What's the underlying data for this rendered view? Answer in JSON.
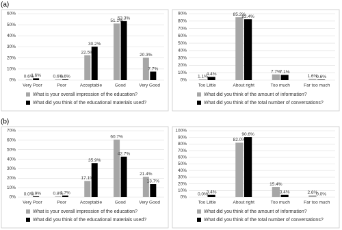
{
  "panels": [
    "(a)",
    "(b)"
  ],
  "chart_data": [
    {
      "type": "bar",
      "categories": [
        "Very Poor",
        "Poor",
        "Acceptable",
        "Good",
        "Very Good"
      ],
      "series": [
        {
          "name": "What is your overall impression of the education?",
          "color": "#a6a6a6",
          "values": [
            0.6,
            0.6,
            22.5,
            51.1,
            20.3
          ],
          "value_labels": [
            "0.6%",
            "0.6%",
            "22.5%",
            "51.1%",
            "20.3%"
          ]
        },
        {
          "name": "What did you think of the educational materials used?",
          "color": "#000000",
          "values": [
            1.6,
            0.6,
            30.2,
            53.3,
            7.7
          ],
          "value_labels": [
            "1.6%",
            "0.6%",
            "30.2%",
            "53.3%",
            "7.7%"
          ]
        }
      ],
      "ylim": [
        0,
        60
      ],
      "yticks": [
        {
          "value": 0,
          "label": "0%"
        },
        {
          "value": 10,
          "label": "10%"
        },
        {
          "value": 20,
          "label": "20%"
        },
        {
          "value": 30,
          "label": "30%"
        },
        {
          "value": 40,
          "label": "40%"
        },
        {
          "value": 50,
          "label": "50%"
        },
        {
          "value": 60,
          "label": "60%"
        }
      ],
      "grid": true,
      "legend": "bottom"
    },
    {
      "type": "bar",
      "categories": [
        "Too Little",
        "About right",
        "Too much",
        "Far too much"
      ],
      "series": [
        {
          "name": "What did you think of the amount of information?",
          "color": "#a6a6a6",
          "values": [
            1.1,
            85.2,
            7.7,
            1.6
          ],
          "value_labels": [
            "1.1%",
            "85.2%",
            "7.7%",
            "1.6%"
          ]
        },
        {
          "name": "What did you think of the total number of conversations?",
          "color": "#000000",
          "values": [
            4.4,
            82.4,
            7.1,
            0.6
          ],
          "value_labels": [
            "4.4%",
            "82.4%",
            "7.1%",
            "0.6%"
          ]
        }
      ],
      "ylim": [
        0,
        90
      ],
      "yticks": [
        {
          "value": 0,
          "label": "0%"
        },
        {
          "value": 10,
          "label": "10%"
        },
        {
          "value": 20,
          "label": "20%"
        },
        {
          "value": 30,
          "label": "30%"
        },
        {
          "value": 40,
          "label": "40%"
        },
        {
          "value": 50,
          "label": "50%"
        },
        {
          "value": 60,
          "label": "60%"
        },
        {
          "value": 70,
          "label": "70%"
        },
        {
          "value": 80,
          "label": "80%"
        },
        {
          "value": 90,
          "label": "90%"
        }
      ],
      "grid": true,
      "legend": "bottom"
    },
    {
      "type": "bar",
      "categories": [
        "Very Poor",
        "Poor",
        "Acceptable",
        "Good",
        "Very Good"
      ],
      "series": [
        {
          "name": "What is your overall impression of the education?",
          "color": "#a6a6a6",
          "values": [
            0.0,
            0.8,
            17.1,
            60.7,
            21.4
          ],
          "value_labels": [
            "0.0%",
            "0.8%",
            "17.1%",
            "60.7%",
            "21.4%"
          ]
        },
        {
          "name": "What did you think of the educational materials used?",
          "color": "#000000",
          "values": [
            0.9,
            1.7,
            35.9,
            42.7,
            13.7
          ],
          "value_labels": [
            "0.9%",
            "1.7%",
            "35.9%",
            "42.7%",
            "13.7%"
          ]
        }
      ],
      "ylim": [
        0,
        70
      ],
      "yticks": [
        {
          "value": 0,
          "label": "0%"
        },
        {
          "value": 10,
          "label": "10%"
        },
        {
          "value": 20,
          "label": "20%"
        },
        {
          "value": 30,
          "label": "30%"
        },
        {
          "value": 40,
          "label": "40%"
        },
        {
          "value": 50,
          "label": "50%"
        },
        {
          "value": 60,
          "label": "60%"
        },
        {
          "value": 70,
          "label": "70%"
        }
      ],
      "grid": true,
      "legend": "bottom"
    },
    {
      "type": "bar",
      "categories": [
        "Too Little",
        "About right",
        "Too much",
        "Far too much"
      ],
      "series": [
        {
          "name": "What did you think of the amount of information?",
          "color": "#a6a6a6",
          "values": [
            0.0,
            82.0,
            15.4,
            2.6
          ],
          "value_labels": [
            "0.0%",
            "82.0%",
            "15.4%",
            "2.6%"
          ]
        },
        {
          "name": "What did you think of the total number of conversations?",
          "color": "#000000",
          "values": [
            3.4,
            90.6,
            3.4,
            0.0
          ],
          "value_labels": [
            "3.4%",
            "90.6%",
            "3.4%",
            "0.0%"
          ]
        }
      ],
      "ylim": [
        0,
        100
      ],
      "yticks": [
        {
          "value": 0,
          "label": "0%"
        },
        {
          "value": 10,
          "label": "10%"
        },
        {
          "value": 20,
          "label": "20%"
        },
        {
          "value": 30,
          "label": "30%"
        },
        {
          "value": 40,
          "label": "40%"
        },
        {
          "value": 50,
          "label": "50%"
        },
        {
          "value": 60,
          "label": "60%"
        },
        {
          "value": 70,
          "label": "70%"
        },
        {
          "value": 80,
          "label": "80%"
        },
        {
          "value": 90,
          "label": "90%"
        },
        {
          "value": 100,
          "label": "100%"
        }
      ],
      "grid": true,
      "legend": "bottom"
    }
  ]
}
